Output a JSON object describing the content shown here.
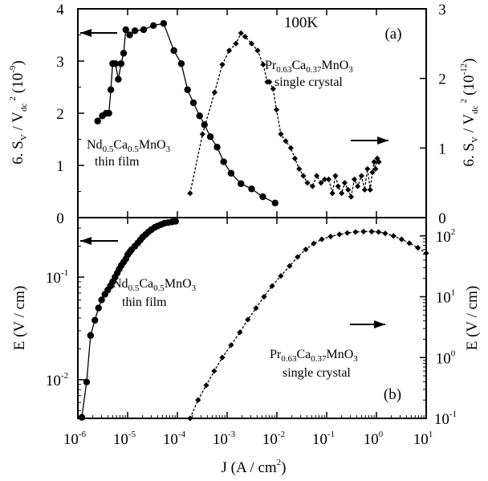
{
  "chart_data": [
    {
      "panel": "(a)",
      "type": "scatter",
      "title": "100K",
      "x_scale": "log",
      "xlim": [
        1e-06,
        10
      ],
      "left_axis": {
        "label": "6. S",
        "label_sub1": "V",
        "label_mid": " / V",
        "label_sub2": "dc",
        "label_sup": "2",
        "label_unit": "(10",
        "label_unit_exp": "-9",
        "label_close": ")",
        "ylim": [
          0,
          4
        ],
        "ticks": [
          "0",
          "1",
          "2",
          "3",
          "4"
        ]
      },
      "right_axis": {
        "label": "6. S",
        "label_sub1": "V",
        "label_mid": " / V",
        "label_sub2": "dc",
        "label_sup": "2",
        "label_unit": "(10",
        "label_unit_exp": "-12",
        "label_close": ")",
        "ylim": [
          0,
          3
        ],
        "ticks": [
          "0",
          "1",
          "2",
          "3"
        ]
      },
      "series": [
        {
          "marker": "circle",
          "axis": "left",
          "label_lines": [
            "Nd",
            "0.5",
            "Ca",
            "0.5",
            "MnO",
            "3"
          ],
          "caption": "thin film",
          "x": [
            2.5e-06,
            3.1e-06,
            3.7e-06,
            4.2e-06,
            4.6e-06,
            5e-06,
            5.7e-06,
            6.5e-06,
            7.4e-06,
            8.3e-06,
            9.2e-06,
            1.1e-05,
            1.4e-05,
            2.1e-05,
            3.3e-05,
            5.3e-05,
            8.5e-05,
            0.00012,
            0.00016,
            0.00021,
            0.00028,
            0.00035,
            0.00046,
            0.00063,
            0.00085,
            0.0012,
            0.0019,
            0.0031,
            0.0052,
            0.0092
          ],
          "y": [
            1.85,
            1.95,
            2.0,
            2.0,
            2.45,
            2.95,
            2.95,
            2.65,
            2.95,
            3.15,
            3.6,
            3.5,
            3.58,
            3.6,
            3.68,
            3.72,
            3.2,
            2.95,
            2.45,
            2.2,
            1.95,
            1.78,
            1.55,
            1.35,
            1.07,
            0.85,
            0.65,
            0.55,
            0.4,
            0.28
          ]
        },
        {
          "marker": "diamond",
          "axis": "right",
          "label_lines": [
            "Pr",
            "0.63",
            "Ca",
            "0.37",
            "MnO",
            "3"
          ],
          "caption": "single crystal",
          "x": [
            0.00018,
            0.00032,
            0.00056,
            0.0008,
            0.0011,
            0.0015,
            0.0019,
            0.0023,
            0.0031,
            0.0041,
            0.0053,
            0.0064,
            0.0071,
            0.0084,
            0.0098,
            0.012,
            0.015,
            0.019,
            0.023,
            0.028,
            0.034,
            0.041,
            0.052,
            0.063,
            0.077,
            0.091,
            0.11,
            0.13,
            0.15,
            0.17,
            0.2,
            0.23,
            0.27,
            0.31,
            0.36,
            0.42,
            0.5,
            0.58,
            0.66,
            0.75,
            0.83,
            0.9,
            0.96,
            1.04,
            1.12
          ],
          "y": [
            0.35,
            1.2,
            1.8,
            2.2,
            2.4,
            2.5,
            2.65,
            2.6,
            2.5,
            2.4,
            2.2,
            1.95,
            1.95,
            1.85,
            1.55,
            1.2,
            1.1,
            1.0,
            0.85,
            0.7,
            0.6,
            0.5,
            0.45,
            0.6,
            0.5,
            0.55,
            0.55,
            0.35,
            0.6,
            0.45,
            0.35,
            0.5,
            0.4,
            0.3,
            0.55,
            0.45,
            0.6,
            0.4,
            0.7,
            0.4,
            0.65,
            0.8,
            0.7,
            0.85,
            0.8
          ]
        }
      ],
      "arrows": [
        {
          "direction": "left",
          "series": "circle"
        },
        {
          "direction": "right",
          "series": "diamond"
        }
      ]
    },
    {
      "panel": "(b)",
      "type": "scatter",
      "x_scale": "log",
      "xlim": [
        1e-06,
        10
      ],
      "xlabel": "J (A / cm",
      "xlabel_sup": "2",
      "xlabel_close": ")",
      "x_ticks": [
        {
          "base": "10",
          "exp": "-6"
        },
        {
          "base": "10",
          "exp": "-5"
        },
        {
          "base": "10",
          "exp": "-4"
        },
        {
          "base": "10",
          "exp": "-3"
        },
        {
          "base": "10",
          "exp": "-2"
        },
        {
          "base": "10",
          "exp": "-1"
        },
        {
          "base": "10",
          "exp": "0"
        },
        {
          "base": "10",
          "exp": "1"
        }
      ],
      "left_axis": {
        "label": "E (V / cm)",
        "scale": "log",
        "ylim": [
          0.0042,
          0.38
        ],
        "ticks": [
          {
            "base": "10",
            "exp": "-2"
          },
          {
            "base": "10",
            "exp": "-1"
          }
        ]
      },
      "right_axis": {
        "label": "E (V / cm)",
        "scale": "log",
        "ylim": [
          0.1,
          200
        ],
        "ticks": [
          {
            "base": "10",
            "exp": "-1"
          },
          {
            "base": "10",
            "exp": "0"
          },
          {
            "base": "10",
            "exp": "1"
          },
          {
            "base": "10",
            "exp": "2"
          }
        ]
      },
      "series": [
        {
          "marker": "circle",
          "axis": "left",
          "label_lines": [
            "Nd",
            "0.5",
            "Ca",
            "0.5",
            "MnO",
            "3"
          ],
          "caption": "thin film",
          "x": [
            1.2e-06,
            1.5e-06,
            1.8e-06,
            2.2e-06,
            2.6e-06,
            3e-06,
            3.5e-06,
            4e-06,
            4.5e-06,
            5e-06,
            5.6e-06,
            6.2e-06,
            6.8e-06,
            7.5e-06,
            8.3e-06,
            9.2e-06,
            1e-05,
            1.1e-05,
            1.2e-05,
            1.4e-05,
            1.6e-05,
            1.8e-05,
            2e-05,
            2.3e-05,
            2.6e-05,
            3e-05,
            3.5e-05,
            4e-05,
            4.7e-05,
            5.5e-05,
            6.5e-05,
            7.8e-05,
            9.2e-05
          ],
          "y": [
            0.0043,
            0.0095,
            0.027,
            0.038,
            0.05,
            0.06,
            0.068,
            0.075,
            0.082,
            0.09,
            0.1,
            0.11,
            0.12,
            0.13,
            0.14,
            0.15,
            0.165,
            0.175,
            0.185,
            0.2,
            0.215,
            0.23,
            0.245,
            0.26,
            0.275,
            0.29,
            0.305,
            0.315,
            0.325,
            0.335,
            0.34,
            0.345,
            0.35
          ]
        },
        {
          "marker": "diamond",
          "axis": "right",
          "label_lines": [
            "Pr",
            "0.63",
            "Ca",
            "0.37",
            "MnO",
            "3"
          ],
          "caption": "single crystal",
          "x": [
            0.00018,
            0.00026,
            0.00038,
            0.00055,
            0.0008,
            0.0012,
            0.0018,
            0.0026,
            0.0038,
            0.0055,
            0.008,
            0.012,
            0.018,
            0.026,
            0.038,
            0.055,
            0.08,
            0.12,
            0.18,
            0.26,
            0.38,
            0.55,
            0.8,
            1.1,
            1.5,
            2.2,
            3.2,
            4.6,
            6.8,
            10
          ],
          "y": [
            0.1,
            0.2,
            0.35,
            0.6,
            1.0,
            1.6,
            2.6,
            4.2,
            6.5,
            10,
            15,
            22,
            32,
            45,
            60,
            75,
            88,
            98,
            106,
            112,
            116,
            118,
            118,
            116,
            110,
            100,
            88,
            76,
            64,
            52
          ]
        }
      ],
      "arrows": [
        {
          "direction": "left",
          "series": "circle"
        },
        {
          "direction": "right",
          "series": "diamond"
        }
      ]
    }
  ]
}
